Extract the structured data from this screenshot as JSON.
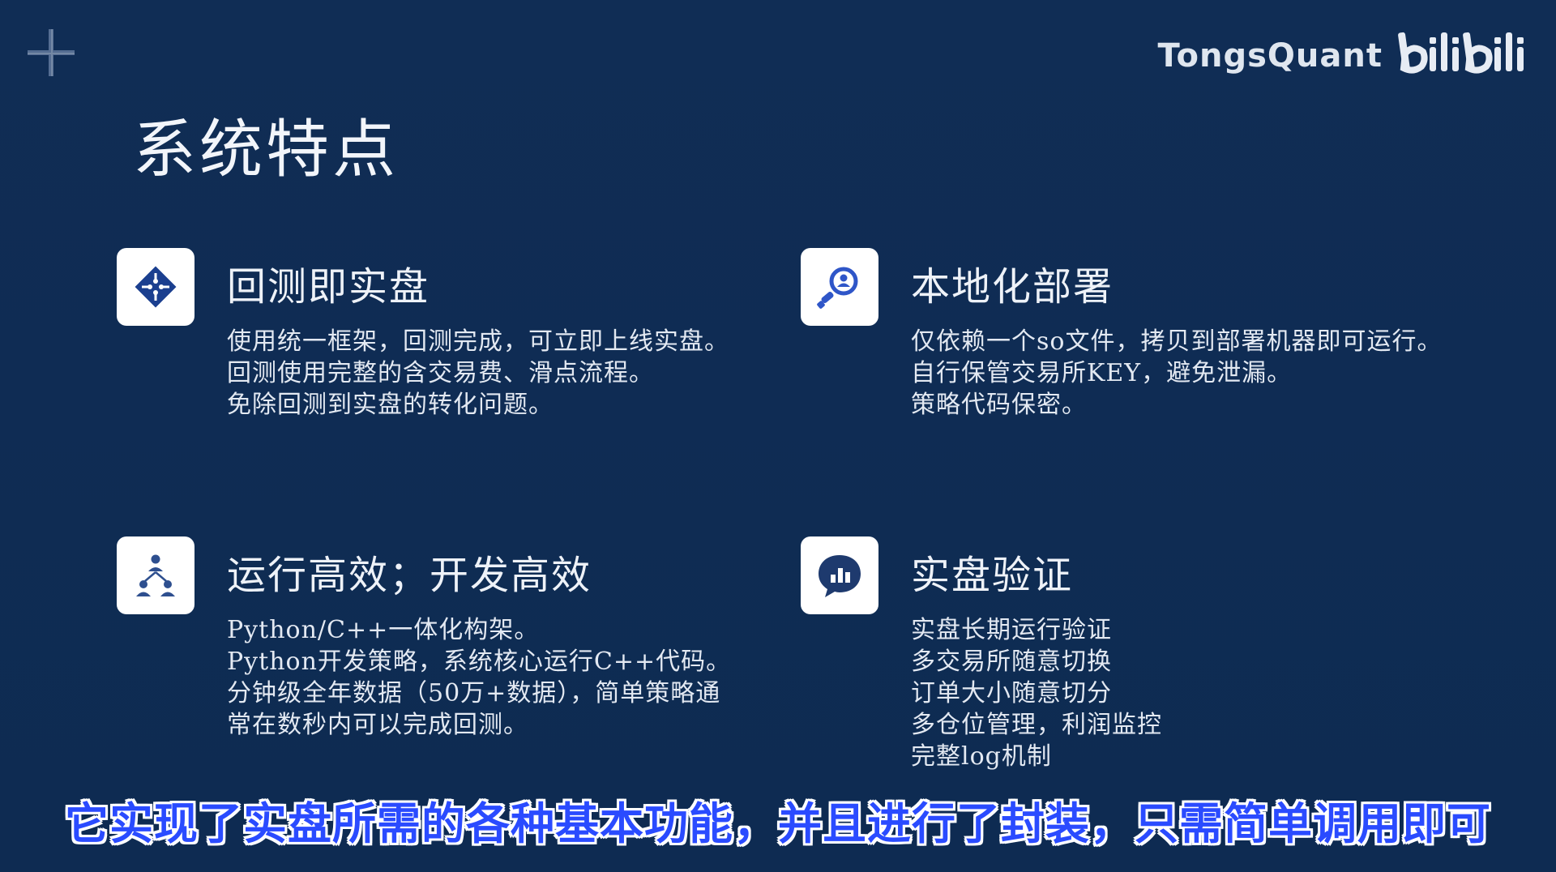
{
  "brand": {
    "name": "TongsQuant",
    "logo_text": "bilibili"
  },
  "page": {
    "title": "系统特点"
  },
  "features": [
    {
      "title": "回测即实盘",
      "icon": "puzzle-diamond-icon",
      "lines": [
        "使用统一框架，回测完成，可立即上线实盘。",
        "回测使用完整的含交易费、滑点流程。",
        "免除回测到实盘的转化问题。"
      ]
    },
    {
      "title": "本地化部署",
      "icon": "search-user-icon",
      "lines": [
        "仅依赖一个so文件，拷贝到部署机器即可运行。",
        "自行保管交易所KEY，避免泄漏。",
        "策略代码保密。"
      ]
    },
    {
      "title": "运行高效；开发高效",
      "icon": "team-hierarchy-icon",
      "lines": [
        "Python/C++一体化构架。",
        "Python开发策略，系统核心运行C++代码。",
        "分钟级全年数据（50万+数据），简单策略通",
        "常在数秒内可以完成回测。"
      ]
    },
    {
      "title": "实盘验证",
      "icon": "chat-chart-icon",
      "lines": [
        "实盘长期运行验证",
        "多交易所随意切换",
        "订单大小随意切分",
        "多仓位管理，利润监控",
        "完整log机制"
      ]
    }
  ],
  "subtitle": "它实现了实盘所需的各种基本功能，并且进行了封装，只需简单调用即可",
  "colors": {
    "background": "#0f2c53",
    "icon_accent": "#1b3f8f",
    "subtitle": "#2a4bff"
  }
}
